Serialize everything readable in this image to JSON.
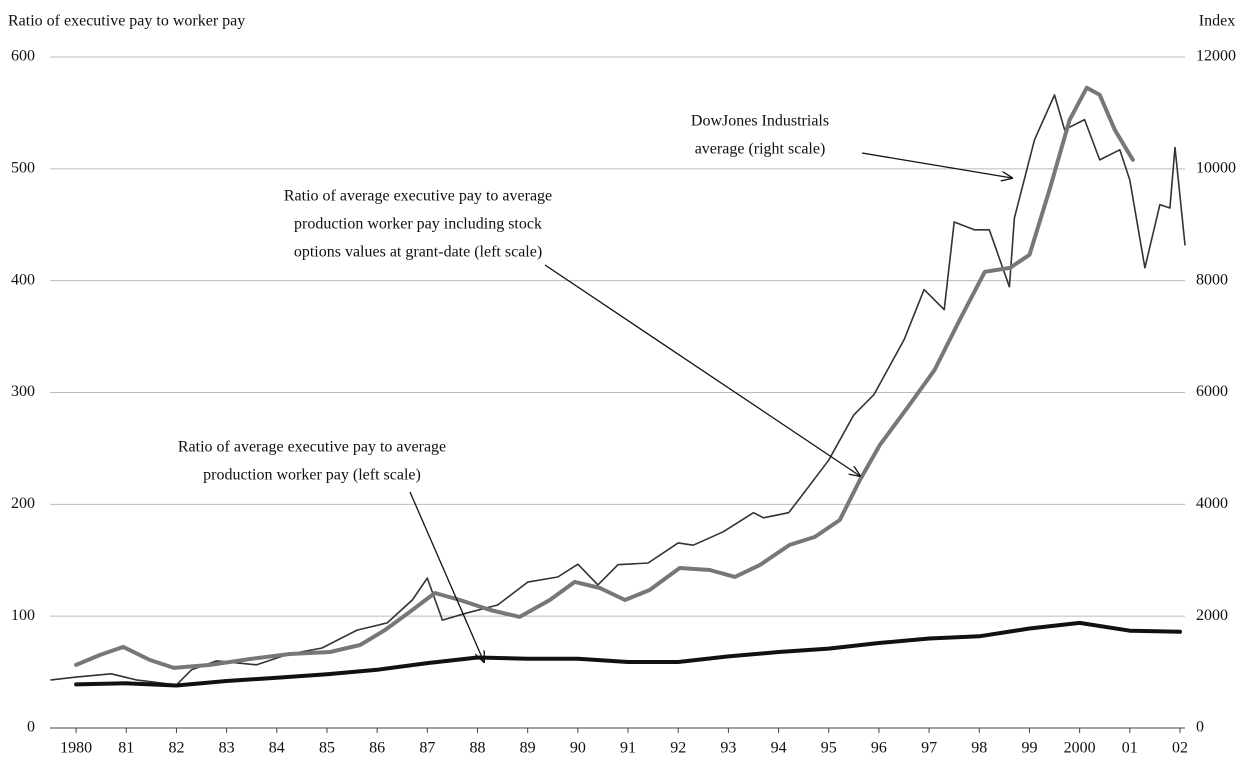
{
  "chart_data": {
    "type": "line",
    "y_label": "Ratio of executive pay to worker pay",
    "y2_label": "Index",
    "xlim": [
      1979.48,
      2002.1
    ],
    "xticks": [
      1980,
      {
        "value": 1981,
        "label": "81"
      },
      {
        "value": 1982,
        "label": "82"
      },
      {
        "value": 1983,
        "label": "83"
      },
      {
        "value": 1984,
        "label": "84"
      },
      {
        "value": 1985,
        "label": "85"
      },
      {
        "value": 1986,
        "label": "86"
      },
      {
        "value": 1987,
        "label": "87"
      },
      {
        "value": 1988,
        "label": "88"
      },
      {
        "value": 1989,
        "label": "89"
      },
      {
        "value": 1990,
        "label": "90"
      },
      {
        "value": 1991,
        "label": "91"
      },
      {
        "value": 1992,
        "label": "92"
      },
      {
        "value": 1993,
        "label": "93"
      },
      {
        "value": 1994,
        "label": "94"
      },
      {
        "value": 1995,
        "label": "95"
      },
      {
        "value": 1996,
        "label": "96"
      },
      {
        "value": 1997,
        "label": "97"
      },
      {
        "value": 1998,
        "label": "98"
      },
      {
        "value": 1999,
        "label": "99"
      },
      2000,
      {
        "value": 2001,
        "label": "01"
      },
      {
        "value": 2002,
        "label": "02"
      }
    ],
    "ylim": [
      0,
      600
    ],
    "yticks": [
      0,
      100,
      200,
      300,
      400,
      500,
      600
    ],
    "y2lim": [
      0,
      12000
    ],
    "y2ticks": [
      0,
      2000,
      4000,
      6000,
      8000,
      10000,
      12000
    ],
    "grid": true,
    "series": [
      {
        "color": "#333333",
        "line_width": 1.6,
        "axis": "y2",
        "x": [
          1979.5,
          1980.0,
          1980.7,
          1981.2,
          1982.0,
          1982.3,
          1982.8,
          1983.6,
          1984.2,
          1984.9,
          1985.6,
          1986.2,
          1986.7,
          1987.0,
          1987.3,
          1987.8,
          1988.4,
          1989.0,
          1989.6,
          1990.0,
          1990.4,
          1990.8,
          1991.4,
          1992.0,
          1992.3,
          1992.9,
          1993.5,
          1993.7,
          1994.2,
          1994.4,
          1995.0,
          1995.5,
          1995.9,
          1996.5,
          1996.9,
          1997.3,
          1997.5,
          1997.9,
          1998.2,
          1998.6,
          1998.7,
          1999.1,
          1999.5,
          1999.7,
          2000.1,
          2000.4,
          2000.8,
          2001.0,
          2001.3,
          2001.6,
          2001.8,
          2001.9,
          2002.1
        ],
        "values": [
          860,
          910,
          970,
          860,
          770,
          1040,
          1200,
          1130,
          1310,
          1430,
          1750,
          1880,
          2290,
          2680,
          1930,
          2060,
          2200,
          2610,
          2700,
          2930,
          2560,
          2920,
          2950,
          3310,
          3270,
          3510,
          3850,
          3760,
          3850,
          4080,
          4790,
          5600,
          5960,
          6940,
          7840,
          7480,
          9050,
          8910,
          8910,
          7890,
          9120,
          10520,
          11320,
          10700,
          10880,
          10160,
          10340,
          9800,
          8230,
          9360,
          9300,
          10380,
          8640
        ]
      },
      {
        "color": "#777777",
        "line_width": 4,
        "axis": "y",
        "x": [
          1980.0,
          1980.48,
          1980.94,
          1981.47,
          1981.95,
          1982.67,
          1983.47,
          1984.26,
          1985.06,
          1985.66,
          1986.16,
          1986.65,
          1987.15,
          1987.65,
          1988.25,
          1988.84,
          1989.44,
          1989.94,
          1990.44,
          1990.94,
          1991.43,
          1992.03,
          1992.63,
          1993.13,
          1993.63,
          1994.22,
          1994.72,
          1995.22,
          1995.62,
          1996.02,
          1996.61,
          1997.11,
          1997.61,
          1998.11,
          1998.61,
          1999.0,
          1999.4,
          1999.8,
          2000.14,
          2000.4,
          2000.7,
          2001.06
        ],
        "values": [
          56.4,
          65.4,
          72.5,
          60.8,
          53.7,
          56.4,
          61.7,
          66.2,
          68.0,
          74.2,
          87.7,
          103.8,
          120.7,
          114.5,
          105.5,
          99.3,
          114.5,
          130.6,
          125.2,
          114.5,
          123.4,
          143.1,
          141.3,
          135.1,
          145.8,
          163.7,
          170.8,
          186.0,
          221.8,
          253.1,
          289.0,
          320.2,
          364.9,
          407.9,
          411.4,
          423.1,
          481.2,
          543.8,
          572.5,
          566.2,
          534.9,
          508.1
        ]
      },
      {
        "color": "#111111",
        "line_width": 4,
        "axis": "y",
        "x": [
          1980,
          1981,
          1982,
          1983,
          1984,
          1985,
          1986,
          1987,
          1988,
          1989,
          1990,
          1991,
          1992,
          1993,
          1994,
          1995,
          1996,
          1997,
          1998,
          1999,
          2000,
          2001,
          2002
        ],
        "values": [
          39,
          40,
          38,
          42,
          45,
          48,
          52,
          58,
          63,
          62,
          62,
          59,
          59,
          64,
          68,
          71,
          76,
          80,
          82,
          89,
          94,
          87,
          86
        ]
      }
    ],
    "annotations": [
      {
        "lines": [
          "DowJones Industrials",
          "average (right scale)"
        ]
      },
      {
        "lines": [
          "Ratio of average executive pay to average",
          "production worker pay including stock",
          "options values at grant-date (left scale)"
        ]
      },
      {
        "lines": [
          "Ratio of average executive pay to average",
          "production worker pay (left scale)"
        ]
      }
    ]
  }
}
